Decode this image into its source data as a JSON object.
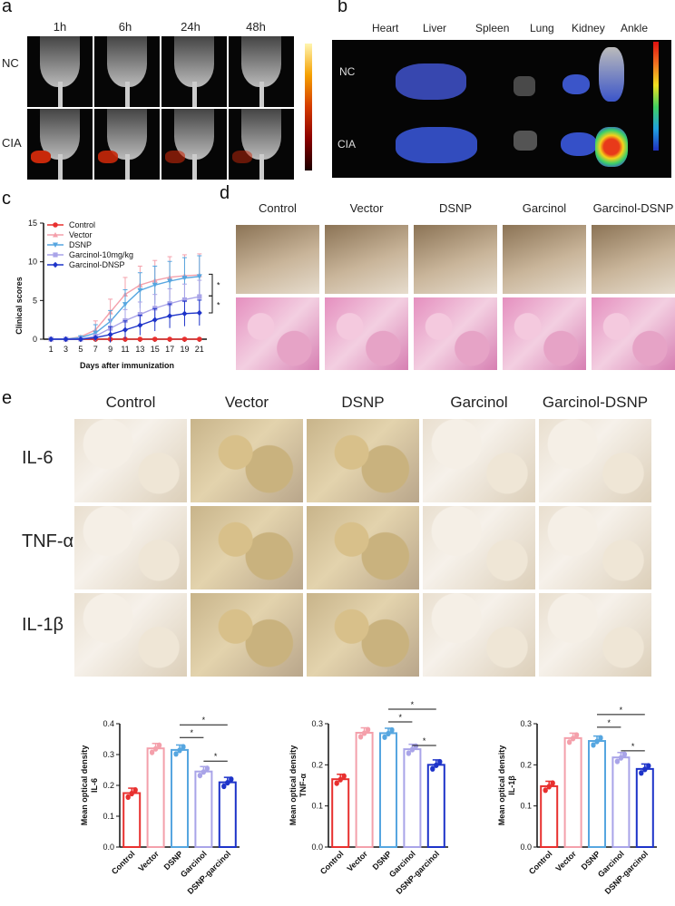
{
  "panels": {
    "a": {
      "label": "a",
      "timepoints": [
        "1h",
        "6h",
        "24h",
        "48h"
      ],
      "groups": [
        "NC",
        "CIA"
      ]
    },
    "b": {
      "label": "b",
      "organs": [
        "Heart",
        "Liver",
        "Spleen",
        "Lung",
        "Kidney",
        "Ankle"
      ],
      "groups": [
        "NC",
        "CIA"
      ]
    },
    "c": {
      "label": "c"
    },
    "d": {
      "label": "d",
      "groups": [
        "Control",
        "Vector",
        "DSNP",
        "Garcinol",
        "Garcinol-DSNP"
      ]
    },
    "e": {
      "label": "e",
      "groups": [
        "Control",
        "Vector",
        "DSNP",
        "Garcinol",
        "Garcinol-DSNP"
      ],
      "markers": [
        "IL-6",
        "TNF-α",
        "IL-1β"
      ]
    }
  },
  "colors": {
    "control": "#e8302f",
    "vector": "#f4a0ab",
    "dsnp": "#56a6e0",
    "garcinol": "#a9a4e8",
    "garcinol_dsnp": "#1d33c9"
  },
  "chart_data": [
    {
      "type": "line",
      "xlabel": "Days after immunization",
      "ylabel": "Clinical scores",
      "x": [
        1,
        3,
        5,
        7,
        9,
        11,
        13,
        15,
        17,
        19,
        21
      ],
      "ylim": [
        0,
        15
      ],
      "yticks": [
        0,
        5,
        10,
        15
      ],
      "legend_position": "top-left",
      "significance": [
        "*",
        "*"
      ],
      "series": [
        {
          "name": "Control",
          "values": [
            0,
            0,
            0,
            0,
            0,
            0,
            0,
            0,
            0,
            0,
            0
          ]
        },
        {
          "name": "Vector",
          "values": [
            0,
            0,
            0.3,
            1.2,
            3.5,
            5.8,
            7.0,
            7.6,
            8.0,
            8.2,
            8.3
          ]
        },
        {
          "name": "DSNP",
          "values": [
            0,
            0,
            0.2,
            0.8,
            2.3,
            4.5,
            6.3,
            7.0,
            7.5,
            7.9,
            8.1
          ]
        },
        {
          "name": "Garcinol-10mg/kg",
          "values": [
            0,
            0,
            0,
            0.4,
            1.4,
            2.4,
            3.2,
            4.0,
            4.6,
            5.1,
            5.5
          ]
        },
        {
          "name": "Garcinol-DNSP",
          "values": [
            0,
            0,
            0,
            0.2,
            0.6,
            1.2,
            1.8,
            2.5,
            3.0,
            3.3,
            3.4
          ]
        }
      ]
    },
    {
      "type": "bar",
      "ylabel": "Mean optical density IL-6",
      "categories": [
        "Control",
        "Vector",
        "DSNP",
        "Garcinol",
        "DSNP-garcinol"
      ],
      "values": [
        0.175,
        0.32,
        0.315,
        0.245,
        0.21
      ],
      "ylim": [
        0,
        0.4
      ],
      "yticks": [
        0.0,
        0.1,
        0.2,
        0.3,
        0.4
      ],
      "significance": [
        "*",
        "*",
        "*"
      ]
    },
    {
      "type": "bar",
      "ylabel": "Mean optical density TNF-α",
      "categories": [
        "Control",
        "Vector",
        "DSNP",
        "Garcinol",
        "DSNP-garcinol"
      ],
      "values": [
        0.165,
        0.278,
        0.277,
        0.238,
        0.2
      ],
      "ylim": [
        0,
        0.3
      ],
      "yticks": [
        0.0,
        0.1,
        0.2,
        0.3
      ],
      "significance": [
        "*",
        "*",
        "*"
      ]
    },
    {
      "type": "bar",
      "ylabel": "Mean optical density IL-1β",
      "categories": [
        "Control",
        "Vector",
        "DSNP",
        "Garcinol",
        "DSNP-garcinol"
      ],
      "values": [
        0.148,
        0.265,
        0.258,
        0.218,
        0.19
      ],
      "ylim": [
        0,
        0.3
      ],
      "yticks": [
        0.0,
        0.1,
        0.2,
        0.3
      ],
      "significance": [
        "*",
        "*",
        "*"
      ]
    }
  ]
}
